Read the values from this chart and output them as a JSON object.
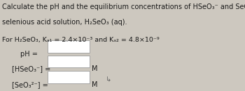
{
  "bg_color": "#cdc8bf",
  "box_color": "#ffffff",
  "text_color": "#1a1a1a",
  "font_size_title": 7.0,
  "font_size_body": 6.8,
  "font_size_labels": 7.0,
  "unit_M": "M",
  "label_pH": "pH =",
  "cursor_char": "D"
}
